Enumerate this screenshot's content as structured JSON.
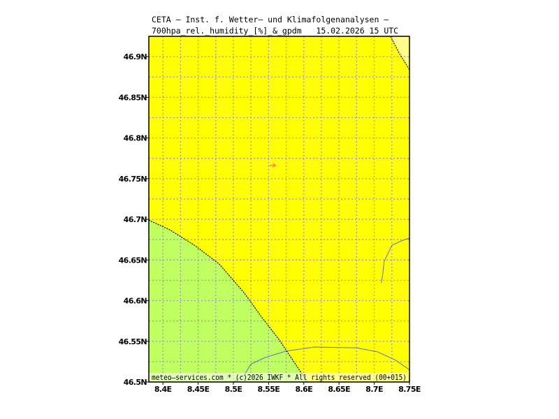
{
  "header": {
    "line1": "CETA — Inst. f. Wetter— und Klimafolgenanalysen —",
    "line2": "700hpa_rel._humidity_[%]_&_gpdm   15.02.2026 15 UTC"
  },
  "footer": {
    "credit": "meteo—services.com * (c)2026 IWKF * All rights reserved (00+015)"
  },
  "map": {
    "lon_range": [
      8.38,
      8.75
    ],
    "lat_range": [
      46.5,
      46.925
    ],
    "lon_ticks": [
      {
        "value": 8.4,
        "label": "8.4E"
      },
      {
        "value": 8.45,
        "label": "8.45E"
      },
      {
        "value": 8.5,
        "label": "8.5E"
      },
      {
        "value": 8.55,
        "label": "8.55E"
      },
      {
        "value": 8.6,
        "label": "8.6E"
      },
      {
        "value": 8.65,
        "label": "8.65E"
      },
      {
        "value": 8.7,
        "label": "8.7E"
      },
      {
        "value": 8.75,
        "label": "8.75E"
      }
    ],
    "lat_ticks": [
      {
        "value": 46.5,
        "label": "46.5N"
      },
      {
        "value": 46.55,
        "label": "46.55N"
      },
      {
        "value": 46.6,
        "label": "46.6N"
      },
      {
        "value": 46.65,
        "label": "46.65N"
      },
      {
        "value": 46.7,
        "label": "46.7N"
      },
      {
        "value": 46.75,
        "label": "46.75N"
      },
      {
        "value": 46.8,
        "label": "46.8N"
      },
      {
        "value": 46.85,
        "label": "46.85N"
      },
      {
        "value": 46.9,
        "label": "46.9N"
      }
    ],
    "grid_lon": [
      8.4,
      8.425,
      8.45,
      8.475,
      8.5,
      8.525,
      8.55,
      8.575,
      8.6,
      8.625,
      8.65,
      8.675,
      8.7,
      8.725
    ],
    "grid_lat": [
      46.525,
      46.55,
      46.575,
      46.6,
      46.625,
      46.65,
      46.675,
      46.7,
      46.725,
      46.75,
      46.775,
      46.8,
      46.825,
      46.85,
      46.875,
      46.9
    ],
    "colors": {
      "background_fill": "#ffff00",
      "green_fill": "#c0ff60",
      "pale_yellow_fill": "#ffff88",
      "grid": "#9999cc",
      "border": "#4466cc",
      "contour": "#000000",
      "wind_arrow": "#ff6666"
    },
    "green_region_boundary": [
      [
        8.38,
        46.699
      ],
      [
        8.41,
        46.687
      ],
      [
        8.445,
        46.668
      ],
      [
        8.48,
        46.645
      ],
      [
        8.515,
        46.61
      ],
      [
        8.54,
        46.58
      ],
      [
        8.565,
        46.552
      ],
      [
        8.585,
        46.526
      ],
      [
        8.605,
        46.5
      ]
    ],
    "pale_region_boundary": [
      [
        8.723,
        46.925
      ],
      [
        8.735,
        46.905
      ],
      [
        8.75,
        46.884
      ]
    ],
    "borders": [
      [
        [
          8.5,
          46.5
        ],
        [
          8.515,
          46.508
        ],
        [
          8.525,
          46.522
        ],
        [
          8.545,
          46.53
        ],
        [
          8.575,
          46.538
        ],
        [
          8.6,
          46.541
        ],
        [
          8.615,
          46.543
        ],
        [
          8.64,
          46.5425
        ],
        [
          8.675,
          46.542
        ],
        [
          8.705,
          46.537
        ],
        [
          8.73,
          46.527
        ],
        [
          8.75,
          46.515
        ]
      ],
      [
        [
          8.71,
          46.622
        ],
        [
          8.712,
          46.632
        ],
        [
          8.714,
          46.648
        ],
        [
          8.725,
          46.668
        ],
        [
          8.74,
          46.674
        ],
        [
          8.75,
          46.677
        ]
      ]
    ],
    "wind_arrow": {
      "lon": 8.555,
      "lat": 46.766
    }
  }
}
